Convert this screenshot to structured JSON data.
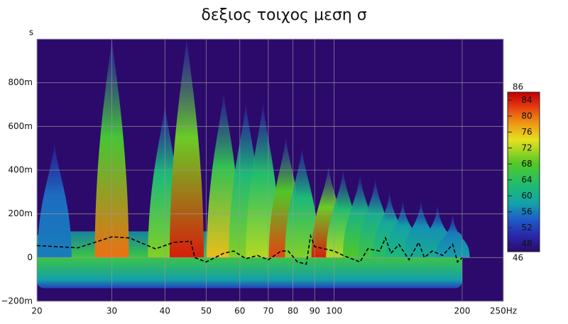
{
  "chart_data": {
    "type": "wavelet",
    "title": "δεξιος τοιχος μεση σ",
    "ylabel": "s",
    "log_x": true,
    "grid": true,
    "background": "#2c0a6b",
    "xlim": [
      20,
      250
    ],
    "xticks": [
      20,
      30,
      40,
      50,
      60,
      70,
      80,
      90,
      100,
      200,
      {
        "value": 250,
        "label": "250Hz"
      }
    ],
    "ylim": [
      -0.2,
      1.0
    ],
    "yticks": [
      {
        "value": -0.2,
        "label": "−200m"
      },
      {
        "value": 0,
        "label": "0"
      },
      {
        "value": 0.2,
        "label": "200m"
      },
      {
        "value": 0.4,
        "label": "400m"
      },
      {
        "value": 0.6,
        "label": "600m"
      },
      {
        "value": 0.8,
        "label": "800m"
      }
    ],
    "clim": [
      46,
      86
    ],
    "cticks": [
      48,
      52,
      56,
      60,
      64,
      68,
      72,
      76,
      80,
      84
    ],
    "band": {
      "xlim": [
        20,
        200
      ],
      "top": 0.12,
      "bottom": -0.14,
      "level": 66
    },
    "ridges": [
      {
        "x": 22,
        "top": 0.52,
        "level": 56
      },
      {
        "x": 30,
        "top": 1.0,
        "level": 80
      },
      {
        "x": 40,
        "top": 0.7,
        "level": 70
      },
      {
        "x": 45,
        "top": 1.0,
        "level": 84
      },
      {
        "x": 55,
        "top": 0.75,
        "level": 76
      },
      {
        "x": 62,
        "top": 0.7,
        "level": 70
      },
      {
        "x": 68,
        "top": 0.7,
        "level": 72
      },
      {
        "x": 77,
        "top": 0.55,
        "level": 82
      },
      {
        "x": 84,
        "top": 0.5,
        "level": 70
      },
      {
        "x": 97,
        "top": 0.42,
        "level": 84
      },
      {
        "x": 105,
        "top": 0.4,
        "level": 72
      },
      {
        "x": 115,
        "top": 0.38,
        "level": 68
      },
      {
        "x": 125,
        "top": 0.36,
        "level": 66
      },
      {
        "x": 135,
        "top": 0.3,
        "level": 64
      },
      {
        "x": 145,
        "top": 0.26,
        "level": 62
      },
      {
        "x": 160,
        "top": 0.26,
        "level": 60
      },
      {
        "x": 175,
        "top": 0.24,
        "level": 60
      },
      {
        "x": 190,
        "top": 0.2,
        "level": 58
      }
    ],
    "series": [
      {
        "color": "#000000",
        "x": [
          20,
          25,
          30,
          33,
          38,
          42,
          46,
          47,
          50,
          55,
          58,
          62,
          66,
          70,
          75,
          78,
          82,
          86,
          88,
          90,
          95,
          100,
          105,
          115,
          120,
          128,
          132,
          136,
          142,
          150,
          158,
          163,
          170,
          180,
          190,
          195,
          200
        ],
        "values": [
          0.055,
          0.045,
          0.095,
          0.09,
          0.04,
          0.07,
          0.075,
          0.0,
          -0.02,
          0.02,
          0.03,
          -0.005,
          0.01,
          -0.01,
          0.03,
          0.03,
          -0.02,
          -0.03,
          0.1,
          0.05,
          0.04,
          0.03,
          0.01,
          -0.02,
          0.04,
          0.03,
          0.09,
          0.02,
          0.06,
          -0.01,
          0.07,
          0.0,
          0.03,
          0.01,
          0.06,
          -0.02,
          0.0
        ]
      }
    ]
  }
}
